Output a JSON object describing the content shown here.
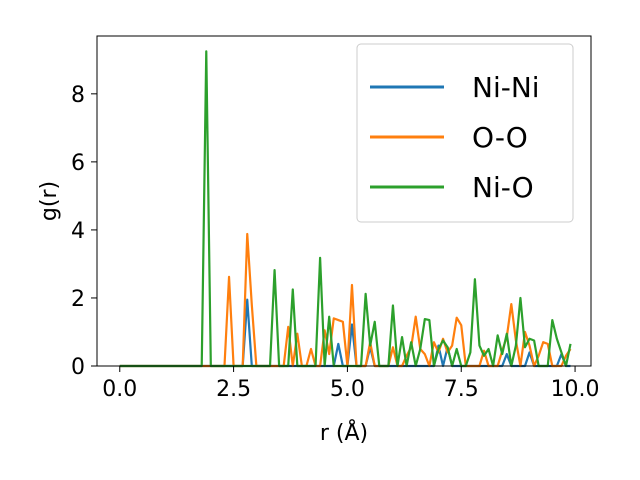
{
  "chart_data": {
    "type": "line",
    "xlabel": "r (Å)",
    "ylabel": "g(r)",
    "xlim": [
      -0.5,
      10.35
    ],
    "ylim": [
      0,
      9.7
    ],
    "xticks": [
      0.0,
      2.5,
      5.0,
      7.5,
      10.0
    ],
    "xtick_labels": [
      "0.0",
      "2.5",
      "5.0",
      "7.5",
      "10.0"
    ],
    "yticks": [
      0,
      2,
      4,
      6,
      8
    ],
    "ytick_labels": [
      "0",
      "2",
      "4",
      "6",
      "8"
    ],
    "grid": false,
    "legend_position": "upper right",
    "x": [
      0.0,
      0.1,
      0.2,
      0.3,
      0.4,
      0.5,
      0.6,
      0.7,
      0.8,
      0.9,
      1.0,
      1.1,
      1.2,
      1.3,
      1.4,
      1.5,
      1.6,
      1.7,
      1.8,
      1.9,
      2.0,
      2.1,
      2.2,
      2.3,
      2.4,
      2.5,
      2.6,
      2.7,
      2.8,
      2.9,
      3.0,
      3.1,
      3.2,
      3.3,
      3.4,
      3.5,
      3.6,
      3.7,
      3.8,
      3.9,
      4.0,
      4.1,
      4.2,
      4.3,
      4.4,
      4.5,
      4.6,
      4.7,
      4.8,
      4.9,
      5.0,
      5.1,
      5.2,
      5.3,
      5.4,
      5.5,
      5.6,
      5.7,
      5.8,
      5.9,
      6.0,
      6.1,
      6.2,
      6.3,
      6.4,
      6.5,
      6.6,
      6.7,
      6.8,
      6.9,
      7.0,
      7.1,
      7.2,
      7.3,
      7.4,
      7.5,
      7.6,
      7.7,
      7.8,
      7.9,
      8.0,
      8.1,
      8.2,
      8.3,
      8.4,
      8.5,
      8.6,
      8.7,
      8.8,
      8.9,
      9.0,
      9.1,
      9.2,
      9.3,
      9.4,
      9.5,
      9.6,
      9.7,
      9.8,
      9.9
    ],
    "series": [
      {
        "name": "Ni-Ni",
        "color": "#1f77b4",
        "values": [
          0,
          0,
          0,
          0,
          0,
          0,
          0,
          0,
          0,
          0,
          0,
          0,
          0,
          0,
          0,
          0,
          0,
          0,
          0,
          0,
          0,
          0,
          0,
          0,
          0,
          0,
          0,
          0,
          1.95,
          0,
          0,
          0,
          0,
          0,
          0,
          0,
          0,
          0,
          0,
          0,
          0,
          0,
          0,
          0,
          0,
          0,
          0,
          0,
          0.65,
          0,
          0,
          1.22,
          0,
          0,
          0,
          0.55,
          0,
          0,
          0,
          0,
          0,
          0,
          0,
          0,
          0,
          0,
          0,
          0,
          0,
          0,
          0.6,
          0,
          0.55,
          0,
          0,
          0,
          0,
          0,
          0,
          0,
          0,
          0,
          0,
          0,
          0,
          0.35,
          0,
          0,
          0,
          0,
          0.4,
          0,
          0,
          0,
          0,
          0,
          0,
          0.35,
          0,
          0
        ]
      },
      {
        "name": "O-O",
        "color": "#ff7f0e",
        "values": [
          0,
          0,
          0,
          0,
          0,
          0,
          0,
          0,
          0,
          0,
          0,
          0,
          0,
          0,
          0,
          0,
          0,
          0,
          0,
          0,
          0,
          0,
          0,
          0,
          2.62,
          0,
          0,
          0,
          3.88,
          1.8,
          0,
          0,
          0,
          0,
          0,
          0,
          0,
          1.15,
          0,
          0.95,
          0,
          0,
          0.5,
          0,
          0,
          1.05,
          0.35,
          1.4,
          1.35,
          1.3,
          0,
          2.38,
          0,
          0,
          0,
          0.7,
          0,
          0,
          0,
          0,
          0.55,
          0,
          0,
          0.3,
          0.55,
          1.45,
          0.5,
          0.35,
          0,
          0.7,
          0.4,
          0.8,
          0.4,
          0.6,
          1.42,
          1.2,
          0,
          0,
          0,
          0,
          0.45,
          0,
          0,
          0,
          0.45,
          0.85,
          1.82,
          0.75,
          0,
          1.0,
          0.6,
          0,
          0.3,
          0.7,
          0.65,
          0,
          0,
          0,
          0.3,
          0.5
        ]
      },
      {
        "name": "Ni-O",
        "color": "#2ca02c",
        "values": [
          0,
          0,
          0,
          0,
          0,
          0,
          0,
          0,
          0,
          0,
          0,
          0,
          0,
          0,
          0,
          0,
          0,
          0,
          0,
          9.25,
          0,
          0,
          0,
          0,
          0,
          0,
          0,
          0,
          0,
          0,
          0,
          0,
          0,
          0,
          2.82,
          0,
          0,
          0,
          2.25,
          0,
          0,
          0,
          0,
          0,
          3.18,
          0,
          1.45,
          0,
          0,
          0,
          0,
          0,
          0,
          0,
          2.12,
          0.6,
          1.3,
          0,
          0,
          0,
          1.78,
          0,
          0.85,
          0,
          0.7,
          0,
          0.5,
          1.38,
          1.35,
          0,
          0.5,
          0.75,
          0.55,
          0,
          0.5,
          0,
          0,
          0.4,
          2.55,
          0.6,
          0.3,
          0.5,
          0,
          0.9,
          0.35,
          0.95,
          0,
          0.6,
          2.0,
          0.55,
          0.8,
          0.75,
          0,
          0,
          0,
          1.35,
          0.8,
          0.4,
          0,
          0.65
        ]
      }
    ]
  }
}
